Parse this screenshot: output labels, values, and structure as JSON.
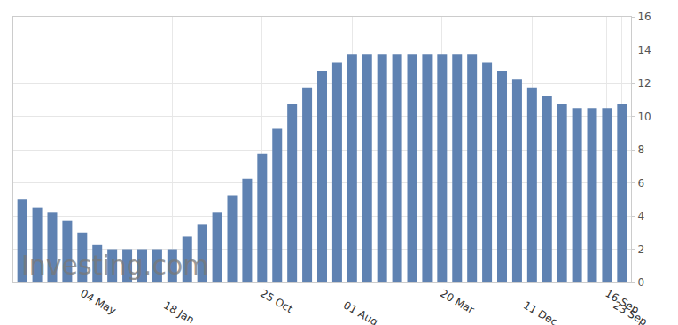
{
  "chart_data": {
    "type": "bar",
    "watermark": "Investing.com",
    "categories": [
      null,
      null,
      null,
      null,
      "04 May",
      null,
      null,
      null,
      null,
      null,
      "18 Jan",
      null,
      null,
      null,
      null,
      null,
      "25 Oct",
      null,
      null,
      null,
      null,
      null,
      "01 Aug",
      null,
      null,
      null,
      null,
      null,
      "20 Mar",
      null,
      null,
      null,
      null,
      null,
      "11 Dec",
      null,
      null,
      null,
      null,
      "16 Sep",
      "23 Sep"
    ],
    "values": [
      5.0,
      4.5,
      4.25,
      3.75,
      3.0,
      2.25,
      2.0,
      2.0,
      2.0,
      2.0,
      2.0,
      2.75,
      3.5,
      4.25,
      5.25,
      6.25,
      7.75,
      9.25,
      10.75,
      11.75,
      12.75,
      13.25,
      13.75,
      13.75,
      13.75,
      13.75,
      13.75,
      13.75,
      13.75,
      13.75,
      13.75,
      13.25,
      12.75,
      12.25,
      11.75,
      11.25,
      10.75,
      10.5,
      10.5,
      10.5,
      10.75
    ],
    "color": "#5f82b2",
    "ylim": [
      0,
      16
    ],
    "yticks": [
      0,
      2,
      4,
      6,
      8,
      10,
      12,
      14,
      16
    ],
    "grid": true
  }
}
